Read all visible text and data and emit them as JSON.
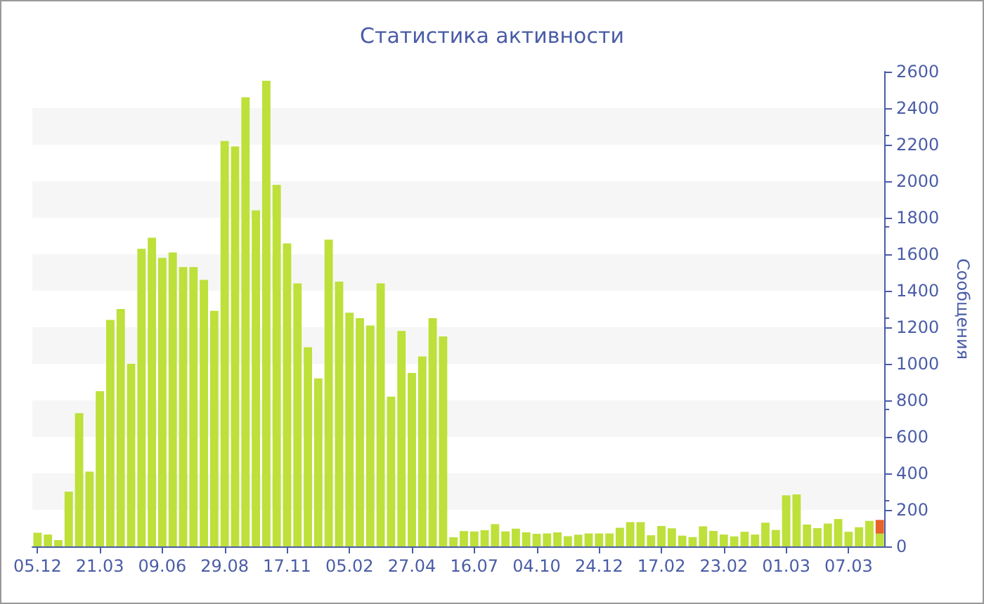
{
  "chart_data": {
    "type": "bar",
    "title": "Статистика активности",
    "ylabel": "Сообщения",
    "categories": [
      "05.12",
      null,
      null,
      null,
      null,
      null,
      "21.03",
      null,
      null,
      null,
      null,
      null,
      "09.06",
      null,
      null,
      null,
      null,
      null,
      "29.08",
      null,
      null,
      null,
      null,
      null,
      "17.11",
      null,
      null,
      null,
      null,
      null,
      "05.02",
      null,
      null,
      null,
      null,
      null,
      "27.04",
      null,
      null,
      null,
      null,
      null,
      "16.07",
      null,
      null,
      null,
      null,
      null,
      "04.10",
      null,
      null,
      null,
      null,
      null,
      "24.12",
      null,
      null,
      null,
      null,
      null,
      "17.02",
      null,
      null,
      null,
      null,
      null,
      "23.02",
      null,
      null,
      null,
      null,
      null,
      "01.03",
      null,
      null,
      null,
      null,
      null,
      "07.03",
      null,
      null,
      null
    ],
    "stacked": true,
    "series": [
      {
        "color": "#bde03a",
        "values": [
          75,
          65,
          35,
          300,
          730,
          410,
          850,
          1240,
          1300,
          1000,
          1630,
          1690,
          1580,
          1610,
          1530,
          1530,
          1460,
          1290,
          2220,
          2190,
          2460,
          1840,
          2550,
          1980,
          1660,
          1440,
          1090,
          920,
          1680,
          1450,
          1280,
          1250,
          1210,
          1440,
          820,
          1180,
          950,
          1040,
          1250,
          1150,
          50,
          84,
          82,
          89,
          122,
          82,
          97,
          77,
          69,
          71,
          77,
          56,
          64,
          71,
          71,
          71,
          102,
          133,
          133,
          61,
          112,
          99,
          59,
          51,
          110,
          85,
          65,
          55,
          80,
          65,
          130,
          90,
          280,
          285,
          120,
          100,
          125,
          150,
          80,
          105,
          140,
          70
        ]
      },
      {
        "color": "#e8622a",
        "values": [
          null,
          null,
          null,
          null,
          null,
          null,
          null,
          null,
          null,
          null,
          null,
          null,
          null,
          null,
          null,
          null,
          null,
          null,
          null,
          null,
          null,
          null,
          null,
          null,
          null,
          null,
          null,
          null,
          null,
          null,
          null,
          null,
          null,
          null,
          null,
          null,
          null,
          null,
          null,
          null,
          null,
          null,
          null,
          null,
          null,
          null,
          null,
          null,
          null,
          null,
          null,
          null,
          null,
          null,
          null,
          null,
          null,
          null,
          null,
          null,
          null,
          null,
          null,
          null,
          null,
          null,
          null,
          null,
          null,
          null,
          null,
          null,
          null,
          null,
          null,
          null,
          null,
          null,
          null,
          null,
          null,
          75
        ]
      }
    ],
    "ylim": [
      0,
      2600
    ],
    "yticks": [
      0,
      200,
      400,
      600,
      800,
      1000,
      1200,
      1400,
      1600,
      1800,
      2000,
      2200,
      2400,
      2600
    ],
    "grid": false
  }
}
